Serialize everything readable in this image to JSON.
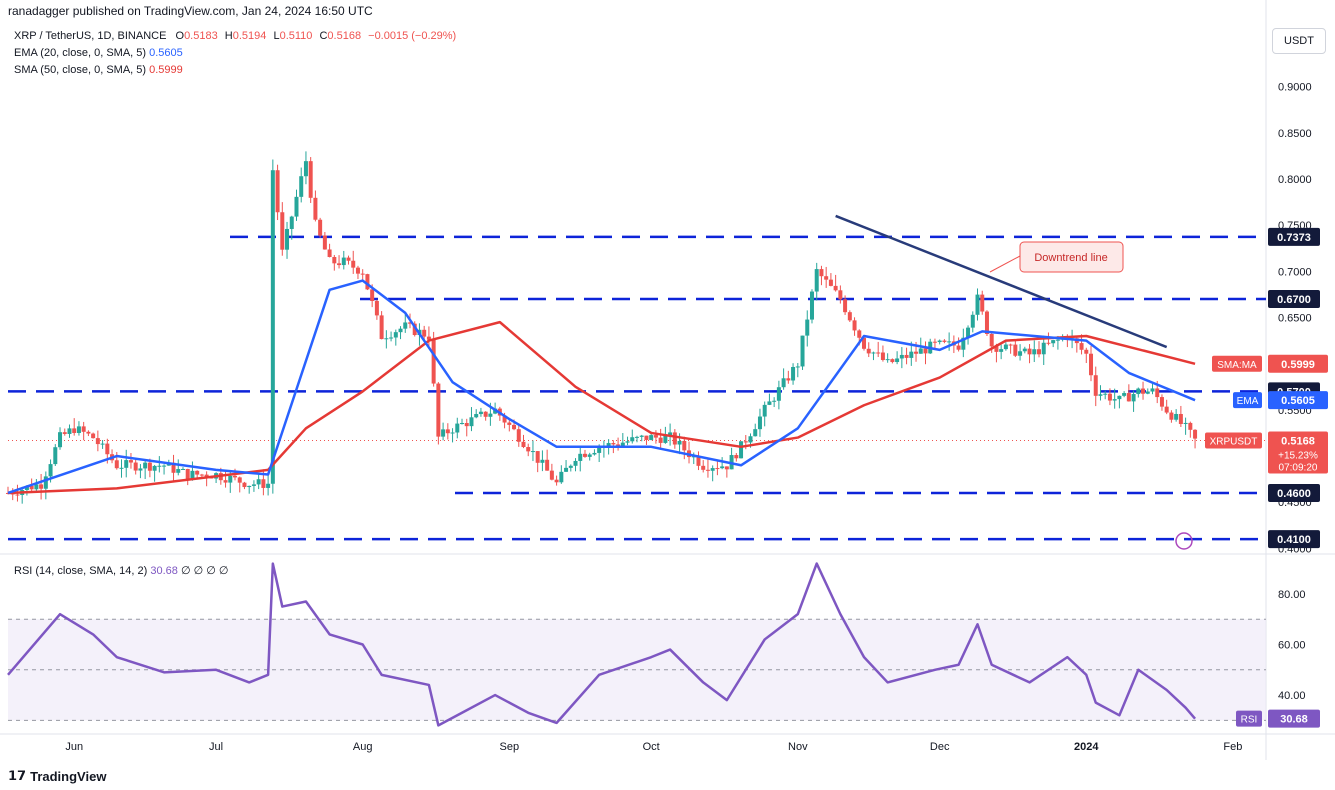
{
  "header": {
    "published_by": "ranadagger published on TradingView.com, Jan 24, 2024 16:50 UTC"
  },
  "legend": {
    "symbol": "XRP / TetherUS, 1D, BINANCE",
    "o_label": "O",
    "o": "0.5183",
    "h_label": "H",
    "h": "0.5194",
    "l_label": "L",
    "l": "0.5110",
    "c_label": "C",
    "c": "0.5168",
    "change": "−0.0015 (−0.29%)",
    "ema_label": "EMA (20, close, 0, SMA, 5)",
    "ema_value": "0.5605",
    "sma_label": "SMA (50, close, 0, SMA, 5)",
    "sma_value": "0.5999",
    "rsi_label": "RSI (14, close, SMA, 14, 2)",
    "rsi_value": "30.68",
    "rsi_extra": "∅ ∅ ∅ ∅"
  },
  "currency_button": "USDT",
  "annotation": "Downtrend line",
  "footer": {
    "brand": "TradingView"
  },
  "colors": {
    "up": "#26a69a",
    "down": "#ef5350",
    "ema": "#2962ff",
    "sma": "#e53935",
    "rsi": "#7e57c2",
    "level": "#0d24d9",
    "trendline": "#283b7a"
  },
  "chart_data": {
    "type": "candlestick",
    "symbol": "XRPUSDT",
    "price_axis": {
      "ticks": [
        "0.9000",
        "0.8500",
        "0.8000",
        "0.7500",
        "0.7000",
        "0.6500",
        "0.6000",
        "0.5500",
        "0.5000",
        "0.4500",
        "0.4000"
      ],
      "range": [
        0.395,
        0.97
      ]
    },
    "x_axis": {
      "labels": [
        "Jun",
        "Jul",
        "Aug",
        "Sep",
        "Oct",
        "Nov",
        "Dec",
        "2024",
        "Feb"
      ],
      "range": [
        "2023-05-18",
        "2024-02-08"
      ],
      "label_dates": [
        "2023-06-01",
        "2023-07-01",
        "2023-08-01",
        "2023-09-01",
        "2023-10-01",
        "2023-11-01",
        "2023-12-01",
        "2024-01-01",
        "2024-02-01"
      ]
    },
    "horizontal_levels": [
      "0.7373",
      "0.6700",
      "0.5700",
      "0.4600",
      "0.4100"
    ],
    "trendline": {
      "from": {
        "date": "2023-11-09",
        "price": 0.76
      },
      "to": {
        "date": "2024-01-18",
        "price": 0.618
      }
    },
    "price_tags": [
      {
        "name": "SMA:MA",
        "value": "0.5999"
      },
      {
        "name": "EMA",
        "value": "0.5605"
      },
      {
        "name": "XRPUSDT",
        "value": "0.5168",
        "extra": [
          "+15.23%",
          "07:09:20"
        ]
      }
    ],
    "closes": [
      {
        "date": "2023-05-18",
        "close": 0.46
      },
      {
        "date": "2023-05-25",
        "close": 0.47
      },
      {
        "date": "2023-05-29",
        "close": 0.52
      },
      {
        "date": "2023-06-01",
        "close": 0.53
      },
      {
        "date": "2023-06-05",
        "close": 0.52
      },
      {
        "date": "2023-06-10",
        "close": 0.49
      },
      {
        "date": "2023-06-13",
        "close": 0.49
      },
      {
        "date": "2023-06-20",
        "close": 0.49
      },
      {
        "date": "2023-06-25",
        "close": 0.48
      },
      {
        "date": "2023-07-01",
        "close": 0.48
      },
      {
        "date": "2023-07-08",
        "close": 0.47
      },
      {
        "date": "2023-07-12",
        "close": 0.47
      },
      {
        "date": "2023-07-13",
        "close": 0.81
      },
      {
        "date": "2023-07-15",
        "close": 0.72
      },
      {
        "date": "2023-07-20",
        "close": 0.82
      },
      {
        "date": "2023-07-22",
        "close": 0.75
      },
      {
        "date": "2023-07-25",
        "close": 0.71
      },
      {
        "date": "2023-07-28",
        "close": 0.71
      },
      {
        "date": "2023-08-01",
        "close": 0.7
      },
      {
        "date": "2023-08-05",
        "close": 0.63
      },
      {
        "date": "2023-08-10",
        "close": 0.64
      },
      {
        "date": "2023-08-15",
        "close": 0.63
      },
      {
        "date": "2023-08-17",
        "close": 0.52
      },
      {
        "date": "2023-08-20",
        "close": 0.53
      },
      {
        "date": "2023-08-29",
        "close": 0.55
      },
      {
        "date": "2023-09-05",
        "close": 0.51
      },
      {
        "date": "2023-09-11",
        "close": 0.47
      },
      {
        "date": "2023-09-15",
        "close": 0.5
      },
      {
        "date": "2023-09-20",
        "close": 0.51
      },
      {
        "date": "2023-09-30",
        "close": 0.52
      },
      {
        "date": "2023-10-05",
        "close": 0.52
      },
      {
        "date": "2023-10-12",
        "close": 0.49
      },
      {
        "date": "2023-10-17",
        "close": 0.49
      },
      {
        "date": "2023-10-20",
        "close": 0.51
      },
      {
        "date": "2023-10-25",
        "close": 0.55
      },
      {
        "date": "2023-11-01",
        "close": 0.6
      },
      {
        "date": "2023-11-05",
        "close": 0.7
      },
      {
        "date": "2023-11-10",
        "close": 0.67
      },
      {
        "date": "2023-11-15",
        "close": 0.62
      },
      {
        "date": "2023-11-20",
        "close": 0.6
      },
      {
        "date": "2023-11-30",
        "close": 0.62
      },
      {
        "date": "2023-12-05",
        "close": 0.62
      },
      {
        "date": "2023-12-09",
        "close": 0.67
      },
      {
        "date": "2023-12-12",
        "close": 0.62
      },
      {
        "date": "2023-12-20",
        "close": 0.61
      },
      {
        "date": "2023-12-28",
        "close": 0.63
      },
      {
        "date": "2024-01-01",
        "close": 0.61
      },
      {
        "date": "2024-01-03",
        "close": 0.57
      },
      {
        "date": "2024-01-08",
        "close": 0.56
      },
      {
        "date": "2024-01-12",
        "close": 0.57
      },
      {
        "date": "2024-01-15",
        "close": 0.57
      },
      {
        "date": "2024-01-18",
        "close": 0.55
      },
      {
        "date": "2024-01-22",
        "close": 0.53
      },
      {
        "date": "2024-01-24",
        "close": 0.5168
      }
    ],
    "ema20": [
      {
        "date": "2023-05-18",
        "value": 0.46
      },
      {
        "date": "2023-06-10",
        "value": 0.5
      },
      {
        "date": "2023-07-01",
        "value": 0.485
      },
      {
        "date": "2023-07-12",
        "value": 0.48
      },
      {
        "date": "2023-07-25",
        "value": 0.68
      },
      {
        "date": "2023-08-01",
        "value": 0.69
      },
      {
        "date": "2023-08-10",
        "value": 0.655
      },
      {
        "date": "2023-08-20",
        "value": 0.58
      },
      {
        "date": "2023-09-01",
        "value": 0.54
      },
      {
        "date": "2023-09-11",
        "value": 0.51
      },
      {
        "date": "2023-10-01",
        "value": 0.51
      },
      {
        "date": "2023-10-20",
        "value": 0.49
      },
      {
        "date": "2023-11-01",
        "value": 0.53
      },
      {
        "date": "2023-11-15",
        "value": 0.63
      },
      {
        "date": "2023-12-01",
        "value": 0.615
      },
      {
        "date": "2023-12-10",
        "value": 0.635
      },
      {
        "date": "2024-01-01",
        "value": 0.625
      },
      {
        "date": "2024-01-10",
        "value": 0.59
      },
      {
        "date": "2024-01-24",
        "value": 0.5605
      }
    ],
    "sma50": [
      {
        "date": "2023-05-18",
        "value": 0.46
      },
      {
        "date": "2023-06-10",
        "value": 0.465
      },
      {
        "date": "2023-07-12",
        "value": 0.485
      },
      {
        "date": "2023-07-20",
        "value": 0.53
      },
      {
        "date": "2023-08-01",
        "value": 0.57
      },
      {
        "date": "2023-08-15",
        "value": 0.625
      },
      {
        "date": "2023-08-30",
        "value": 0.645
      },
      {
        "date": "2023-09-15",
        "value": 0.575
      },
      {
        "date": "2023-10-01",
        "value": 0.525
      },
      {
        "date": "2023-10-20",
        "value": 0.51
      },
      {
        "date": "2023-11-01",
        "value": 0.52
      },
      {
        "date": "2023-11-15",
        "value": 0.555
      },
      {
        "date": "2023-12-01",
        "value": 0.585
      },
      {
        "date": "2023-12-15",
        "value": 0.625
      },
      {
        "date": "2024-01-01",
        "value": 0.63
      },
      {
        "date": "2024-01-24",
        "value": 0.5999
      }
    ],
    "rsi": {
      "ticks": [
        "80.00",
        "60.00",
        "40.00"
      ],
      "range": [
        25,
        95
      ],
      "bands": [
        30,
        50,
        70
      ],
      "points": [
        {
          "date": "2023-05-18",
          "value": 48
        },
        {
          "date": "2023-05-29",
          "value": 72
        },
        {
          "date": "2023-06-05",
          "value": 64
        },
        {
          "date": "2023-06-10",
          "value": 55
        },
        {
          "date": "2023-06-20",
          "value": 49
        },
        {
          "date": "2023-07-01",
          "value": 50
        },
        {
          "date": "2023-07-08",
          "value": 45
        },
        {
          "date": "2023-07-12",
          "value": 48
        },
        {
          "date": "2023-07-13",
          "value": 92
        },
        {
          "date": "2023-07-15",
          "value": 75
        },
        {
          "date": "2023-07-20",
          "value": 77
        },
        {
          "date": "2023-07-25",
          "value": 64
        },
        {
          "date": "2023-08-01",
          "value": 60
        },
        {
          "date": "2023-08-05",
          "value": 48
        },
        {
          "date": "2023-08-15",
          "value": 44
        },
        {
          "date": "2023-08-17",
          "value": 28
        },
        {
          "date": "2023-08-22",
          "value": 33
        },
        {
          "date": "2023-08-29",
          "value": 40
        },
        {
          "date": "2023-09-05",
          "value": 33
        },
        {
          "date": "2023-09-11",
          "value": 29
        },
        {
          "date": "2023-09-20",
          "value": 48
        },
        {
          "date": "2023-10-01",
          "value": 55
        },
        {
          "date": "2023-10-05",
          "value": 58
        },
        {
          "date": "2023-10-12",
          "value": 45
        },
        {
          "date": "2023-10-17",
          "value": 38
        },
        {
          "date": "2023-10-25",
          "value": 62
        },
        {
          "date": "2023-11-01",
          "value": 72
        },
        {
          "date": "2023-11-05",
          "value": 92
        },
        {
          "date": "2023-11-10",
          "value": 72
        },
        {
          "date": "2023-11-15",
          "value": 55
        },
        {
          "date": "2023-11-20",
          "value": 45
        },
        {
          "date": "2023-11-30",
          "value": 50
        },
        {
          "date": "2023-12-05",
          "value": 52
        },
        {
          "date": "2023-12-09",
          "value": 68
        },
        {
          "date": "2023-12-12",
          "value": 52
        },
        {
          "date": "2023-12-20",
          "value": 45
        },
        {
          "date": "2023-12-28",
          "value": 55
        },
        {
          "date": "2024-01-01",
          "value": 48
        },
        {
          "date": "2024-01-03",
          "value": 37
        },
        {
          "date": "2024-01-08",
          "value": 32
        },
        {
          "date": "2024-01-12",
          "value": 50
        },
        {
          "date": "2024-01-18",
          "value": 42
        },
        {
          "date": "2024-01-22",
          "value": 35
        },
        {
          "date": "2024-01-24",
          "value": 30.68
        }
      ]
    }
  }
}
